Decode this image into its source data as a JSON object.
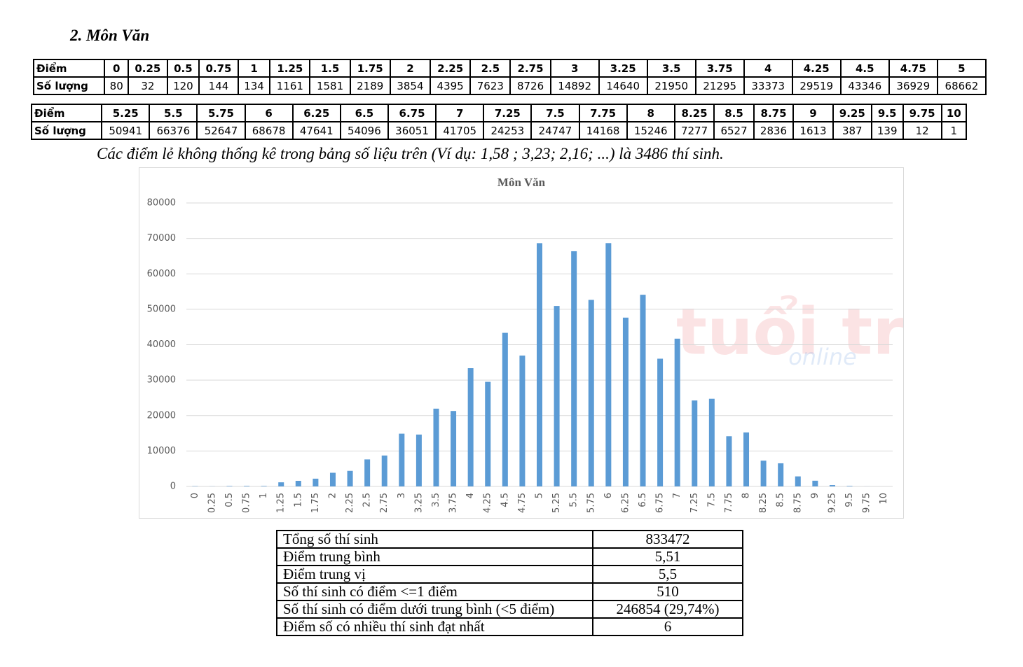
{
  "heading": "2.  Môn Văn",
  "table_row_labels": [
    "Điểm",
    "Số lượng"
  ],
  "note": "Các điểm lẻ không thống kê trong bảng số liệu trên (Ví dụ: 1,58 ; 3,23; 2,16; ...) là 3486 thí sinh.",
  "watermark": [
    "tuổi trẻ",
    "online"
  ],
  "chart_data": {
    "type": "bar",
    "title": "Môn Văn",
    "categories": [
      "0",
      "0.25",
      "0.5",
      "0.75",
      "1",
      "1.25",
      "1.5",
      "1.75",
      "2",
      "2.25",
      "2.5",
      "2.75",
      "3",
      "3.25",
      "3.5",
      "3.75",
      "4",
      "4.25",
      "4.5",
      "4.75",
      "5",
      "5.25",
      "5.5",
      "5.75",
      "6",
      "6.25",
      "6.5",
      "6.75",
      "7",
      "7.25",
      "7.5",
      "7.75",
      "8",
      "8.25",
      "8.5",
      "8.75",
      "9",
      "9.25",
      "9.5",
      "9.75",
      "10"
    ],
    "values": [
      80,
      32,
      120,
      144,
      134,
      1161,
      1581,
      2189,
      3854,
      4395,
      7623,
      8726,
      14892,
      14640,
      21950,
      21295,
      33373,
      29519,
      43346,
      36929,
      68662,
      50941,
      66376,
      52647,
      68678,
      47641,
      54096,
      36051,
      41705,
      24253,
      24747,
      14168,
      15246,
      7277,
      6527,
      2836,
      1613,
      387,
      139,
      12,
      1
    ],
    "color": "#5b9bd5",
    "ylim": [
      0,
      80000
    ],
    "yticks": [
      0,
      10000,
      20000,
      30000,
      40000,
      50000,
      60000,
      70000,
      80000
    ],
    "grid": true
  },
  "summary": {
    "rows": [
      [
        "Tổng số thí sinh",
        "833472"
      ],
      [
        "Điểm trung bình",
        "5,51"
      ],
      [
        "Điểm trung vị",
        "5,5"
      ],
      [
        "Số thí sinh có điểm <=1 điểm",
        "510"
      ],
      [
        "Số thí sinh có điểm dưới trung bình (<5 điểm)",
        "246854 (29,74%)"
      ],
      [
        "Điểm số có nhiều thí sinh đạt nhất",
        "6"
      ]
    ]
  }
}
